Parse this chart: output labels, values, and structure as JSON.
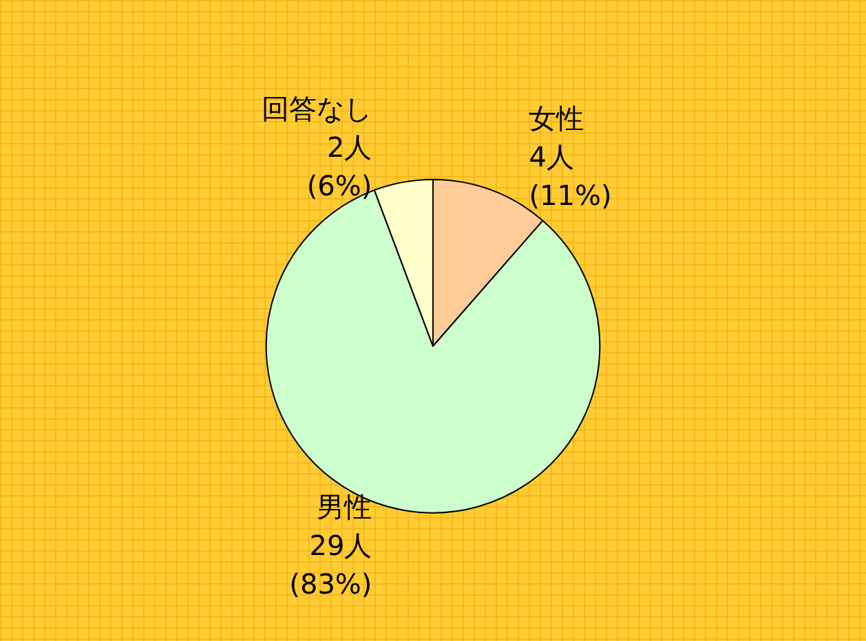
{
  "chart_data": {
    "type": "pie",
    "categories": [
      "女性",
      "男性",
      "回答なし"
    ],
    "values": [
      4,
      29,
      2
    ],
    "colors": [
      "#ffcc99",
      "#ccffcc",
      "#ffffcc"
    ],
    "value_labels": [
      "4人\n(11%)",
      "29人\n(83%)",
      "2人\n(6%)"
    ]
  }
}
